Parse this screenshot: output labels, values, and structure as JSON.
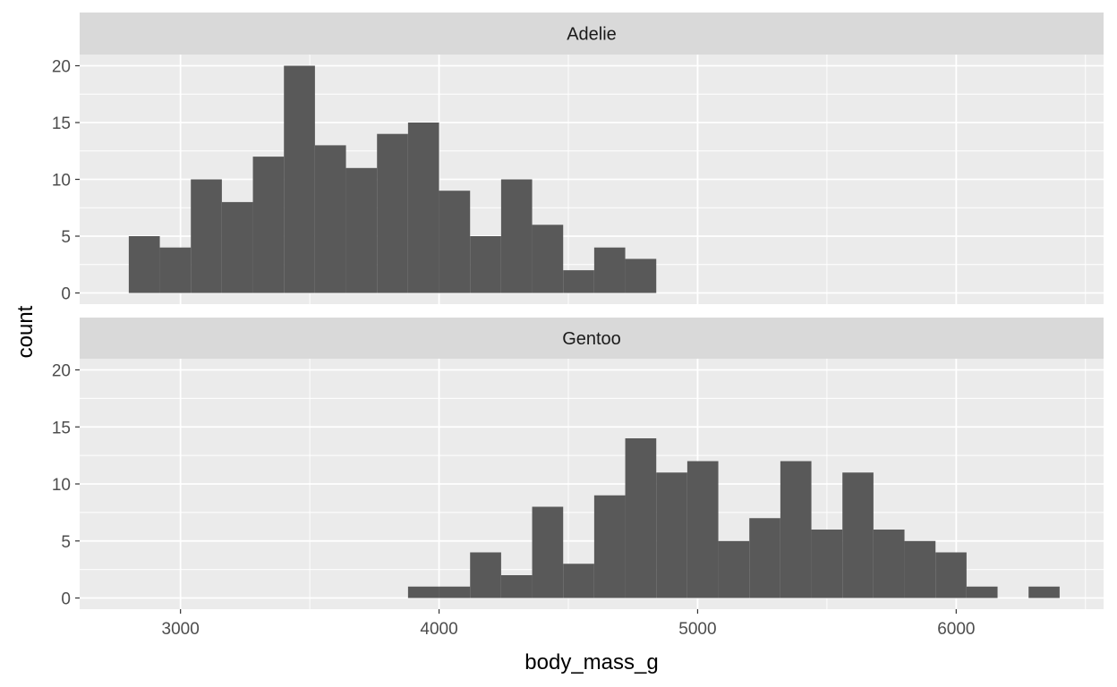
{
  "chart_data": {
    "type": "bar",
    "xlabel": "body_mass_g",
    "ylabel": "count",
    "xlim": [
      2610,
      6570
    ],
    "ylim": [
      0,
      20
    ],
    "x_ticks": [
      3000,
      4000,
      5000,
      6000
    ],
    "y_ticks": [
      0,
      5,
      10,
      15,
      20
    ],
    "grid": true,
    "bin_width": 120,
    "panels": [
      {
        "strip_label": "Adelie",
        "bins": [
          {
            "x0": 2800,
            "x1": 2920,
            "count": 5
          },
          {
            "x0": 2920,
            "x1": 3040,
            "count": 4
          },
          {
            "x0": 3040,
            "x1": 3160,
            "count": 10
          },
          {
            "x0": 3160,
            "x1": 3280,
            "count": 8
          },
          {
            "x0": 3280,
            "x1": 3400,
            "count": 12
          },
          {
            "x0": 3400,
            "x1": 3520,
            "count": 20
          },
          {
            "x0": 3520,
            "x1": 3640,
            "count": 13
          },
          {
            "x0": 3640,
            "x1": 3760,
            "count": 11
          },
          {
            "x0": 3760,
            "x1": 3880,
            "count": 14
          },
          {
            "x0": 3880,
            "x1": 4000,
            "count": 15
          },
          {
            "x0": 4000,
            "x1": 4120,
            "count": 9
          },
          {
            "x0": 4120,
            "x1": 4240,
            "count": 5
          },
          {
            "x0": 4240,
            "x1": 4360,
            "count": 10
          },
          {
            "x0": 4360,
            "x1": 4480,
            "count": 6
          },
          {
            "x0": 4480,
            "x1": 4600,
            "count": 2
          },
          {
            "x0": 4600,
            "x1": 4720,
            "count": 4
          },
          {
            "x0": 4720,
            "x1": 4840,
            "count": 3
          }
        ]
      },
      {
        "strip_label": "Gentoo",
        "bins": [
          {
            "x0": 3880,
            "x1": 4000,
            "count": 1
          },
          {
            "x0": 4000,
            "x1": 4120,
            "count": 1
          },
          {
            "x0": 4120,
            "x1": 4240,
            "count": 4
          },
          {
            "x0": 4240,
            "x1": 4360,
            "count": 2
          },
          {
            "x0": 4360,
            "x1": 4480,
            "count": 8
          },
          {
            "x0": 4480,
            "x1": 4600,
            "count": 3
          },
          {
            "x0": 4600,
            "x1": 4720,
            "count": 9
          },
          {
            "x0": 4720,
            "x1": 4840,
            "count": 14
          },
          {
            "x0": 4840,
            "x1": 4960,
            "count": 11
          },
          {
            "x0": 4960,
            "x1": 5080,
            "count": 12
          },
          {
            "x0": 5080,
            "x1": 5200,
            "count": 5
          },
          {
            "x0": 5200,
            "x1": 5320,
            "count": 7
          },
          {
            "x0": 5320,
            "x1": 5440,
            "count": 12
          },
          {
            "x0": 5440,
            "x1": 5560,
            "count": 6
          },
          {
            "x0": 5560,
            "x1": 5680,
            "count": 11
          },
          {
            "x0": 5680,
            "x1": 5800,
            "count": 6
          },
          {
            "x0": 5800,
            "x1": 5920,
            "count": 5
          },
          {
            "x0": 5920,
            "x1": 6040,
            "count": 4
          },
          {
            "x0": 6040,
            "x1": 6160,
            "count": 1
          },
          {
            "x0": 6160,
            "x1": 6280,
            "count": 0
          },
          {
            "x0": 6280,
            "x1": 6400,
            "count": 1
          }
        ]
      }
    ],
    "colors": {
      "bar": "#595959",
      "panel_bg": "#ebebeb",
      "strip_bg": "#d9d9d9",
      "grid": "#ffffff",
      "tick": "#333333"
    }
  }
}
